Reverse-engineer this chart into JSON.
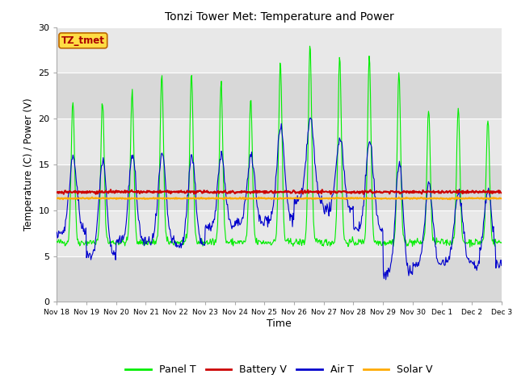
{
  "title": "Tonzi Tower Met: Temperature and Power",
  "xlabel": "Time",
  "ylabel": "Temperature (C) / Power (V)",
  "ylim": [
    0,
    30
  ],
  "battery_v_level": 12.0,
  "solar_v_level": 11.3,
  "bg_color_light": "#e8e8e8",
  "bg_color_dark": "#d8d8d8",
  "panel_color": "#00ee00",
  "battery_color": "#cc0000",
  "air_color": "#0000cc",
  "solar_color": "#ffaa00",
  "legend_label": "TZ_tmet",
  "legend_box_facecolor": "#ffdd44",
  "legend_box_edgecolor": "#bb6600",
  "legend_text_color": "#aa0000",
  "x_tick_labels": [
    "Nov 18",
    "Nov 19",
    "Nov 20",
    "Nov 21",
    "Nov 22",
    "Nov 23",
    "Nov 24",
    "Nov 25",
    "Nov 26",
    "Nov 27",
    "Nov 28",
    "Nov 29",
    "Nov 30",
    "Dec 1",
    "Dec 2",
    "Dec 3"
  ],
  "yticks": [
    0,
    5,
    10,
    15,
    20,
    25,
    30
  ],
  "grid_color": "#ffffff"
}
